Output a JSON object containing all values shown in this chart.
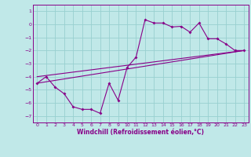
{
  "title": "",
  "xlabel": "Windchill (Refroidissement éolien,°C)",
  "ylabel": "",
  "background_color": "#c0e8e8",
  "grid_color": "#98d0d0",
  "line_color": "#880088",
  "spine_color": "#880088",
  "xlim": [
    -0.5,
    23.5
  ],
  "ylim": [
    -7.5,
    1.5
  ],
  "xticks": [
    0,
    1,
    2,
    3,
    4,
    5,
    6,
    7,
    8,
    9,
    10,
    11,
    12,
    13,
    14,
    15,
    16,
    17,
    18,
    19,
    20,
    21,
    22,
    23
  ],
  "yticks": [
    -7,
    -6,
    -5,
    -4,
    -3,
    -2,
    -1,
    0,
    1
  ],
  "series1_x": [
    0,
    1,
    2,
    3,
    4,
    5,
    6,
    7,
    8,
    9,
    10,
    11,
    12,
    13,
    14,
    15,
    16,
    17,
    18,
    19,
    20,
    21,
    22,
    23
  ],
  "series1_y": [
    -4.5,
    -4.0,
    -4.8,
    -5.3,
    -6.3,
    -6.5,
    -6.5,
    -6.8,
    -4.5,
    -5.8,
    -3.3,
    -2.5,
    0.35,
    0.1,
    0.1,
    -0.2,
    -0.15,
    -0.6,
    0.1,
    -1.1,
    -1.1,
    -1.5,
    -2.0,
    -2.0
  ],
  "series2_x": [
    0,
    23
  ],
  "series2_y": [
    -4.5,
    -2.0
  ],
  "series3_x": [
    0,
    23
  ],
  "series3_y": [
    -4.0,
    -2.0
  ],
  "tick_fontsize": 4.5,
  "xlabel_fontsize": 5.5,
  "xlabel_fontweight": "bold"
}
